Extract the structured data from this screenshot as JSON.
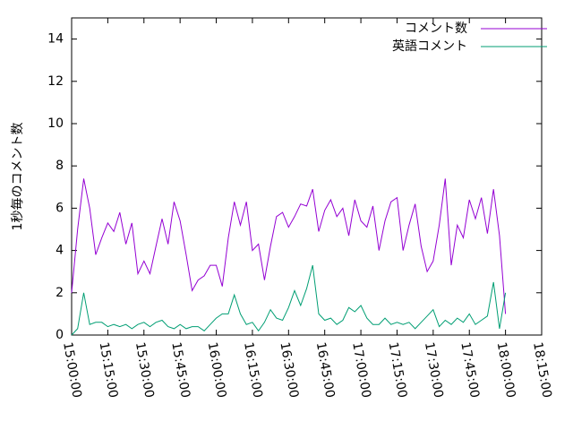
{
  "chart_data": {
    "type": "line",
    "y_label": "1秒毎のコメント数",
    "x": [
      "15:00:00",
      "15:02:30",
      "15:05:00",
      "15:07:30",
      "15:10:00",
      "15:12:30",
      "15:15:00",
      "15:17:30",
      "15:20:00",
      "15:22:30",
      "15:25:00",
      "15:27:30",
      "15:30:00",
      "15:32:30",
      "15:35:00",
      "15:37:30",
      "15:40:00",
      "15:42:30",
      "15:45:00",
      "15:47:30",
      "15:50:00",
      "15:52:30",
      "15:55:00",
      "15:57:30",
      "16:00:00",
      "16:02:30",
      "16:05:00",
      "16:07:30",
      "16:10:00",
      "16:12:30",
      "16:15:00",
      "16:17:30",
      "16:20:00",
      "16:22:30",
      "16:25:00",
      "16:27:30",
      "16:30:00",
      "16:32:30",
      "16:35:00",
      "16:37:30",
      "16:40:00",
      "16:42:30",
      "16:45:00",
      "16:47:30",
      "16:50:00",
      "16:52:30",
      "16:55:00",
      "16:57:30",
      "17:00:00",
      "17:02:30",
      "17:05:00",
      "17:07:30",
      "17:10:00",
      "17:12:30",
      "17:15:00",
      "17:17:30",
      "17:20:00",
      "17:22:30",
      "17:25:00",
      "17:27:30",
      "17:30:00",
      "17:32:30",
      "17:35:00",
      "17:37:30",
      "17:40:00",
      "17:42:30",
      "17:45:00",
      "17:47:30",
      "17:50:00",
      "17:52:30",
      "17:55:00",
      "17:57:30",
      "18:00:00"
    ],
    "series": [
      {
        "name": "コメント数",
        "color": "#9400d3",
        "values": [
          2.0,
          5.0,
          7.4,
          6.0,
          3.8,
          4.6,
          5.3,
          4.9,
          5.8,
          4.3,
          5.3,
          2.9,
          3.5,
          2.9,
          4.2,
          5.5,
          4.3,
          6.3,
          5.4,
          3.8,
          2.1,
          2.6,
          2.8,
          3.3,
          3.3,
          2.3,
          4.6,
          6.3,
          5.2,
          6.3,
          4.0,
          4.3,
          2.6,
          4.2,
          5.6,
          5.8,
          5.1,
          5.6,
          6.2,
          6.1,
          6.9,
          4.9,
          5.9,
          6.4,
          5.6,
          6.0,
          4.7,
          6.4,
          5.4,
          5.1,
          6.1,
          4.0,
          5.4,
          6.3,
          6.5,
          4.0,
          5.2,
          6.2,
          4.2,
          3.0,
          3.5,
          5.2,
          7.4,
          3.3,
          5.2,
          4.6,
          6.4,
          5.5,
          6.5,
          4.8,
          6.9,
          4.7,
          1.0
        ]
      },
      {
        "name": "英語コメント",
        "color": "#009e73",
        "values": [
          0.0,
          0.3,
          2.0,
          0.5,
          0.6,
          0.6,
          0.4,
          0.5,
          0.4,
          0.5,
          0.3,
          0.5,
          0.6,
          0.4,
          0.6,
          0.7,
          0.4,
          0.3,
          0.5,
          0.3,
          0.4,
          0.4,
          0.2,
          0.5,
          0.8,
          1.0,
          1.0,
          1.9,
          1.0,
          0.5,
          0.6,
          0.2,
          0.6,
          1.2,
          0.8,
          0.7,
          1.3,
          2.1,
          1.4,
          2.2,
          3.3,
          1.0,
          0.7,
          0.8,
          0.5,
          0.7,
          1.3,
          1.1,
          1.4,
          0.8,
          0.5,
          0.5,
          0.8,
          0.5,
          0.6,
          0.5,
          0.6,
          0.3,
          0.6,
          0.9,
          1.2,
          0.4,
          0.7,
          0.5,
          0.8,
          0.6,
          1.0,
          0.5,
          0.7,
          0.9,
          2.5,
          0.3,
          2.0
        ]
      }
    ],
    "xlim": [
      "15:00:00",
      "18:15:00"
    ],
    "xticks": [
      "15:00:00",
      "15:15:00",
      "15:30:00",
      "15:45:00",
      "16:00:00",
      "16:15:00",
      "16:30:00",
      "16:45:00",
      "17:00:00",
      "17:15:00",
      "17:30:00",
      "17:45:00",
      "18:00:00",
      "18:15:00"
    ],
    "ylim": [
      0,
      15
    ],
    "yticks": [
      0,
      2,
      4,
      6,
      8,
      10,
      12,
      14
    ],
    "legend": "top-right"
  }
}
